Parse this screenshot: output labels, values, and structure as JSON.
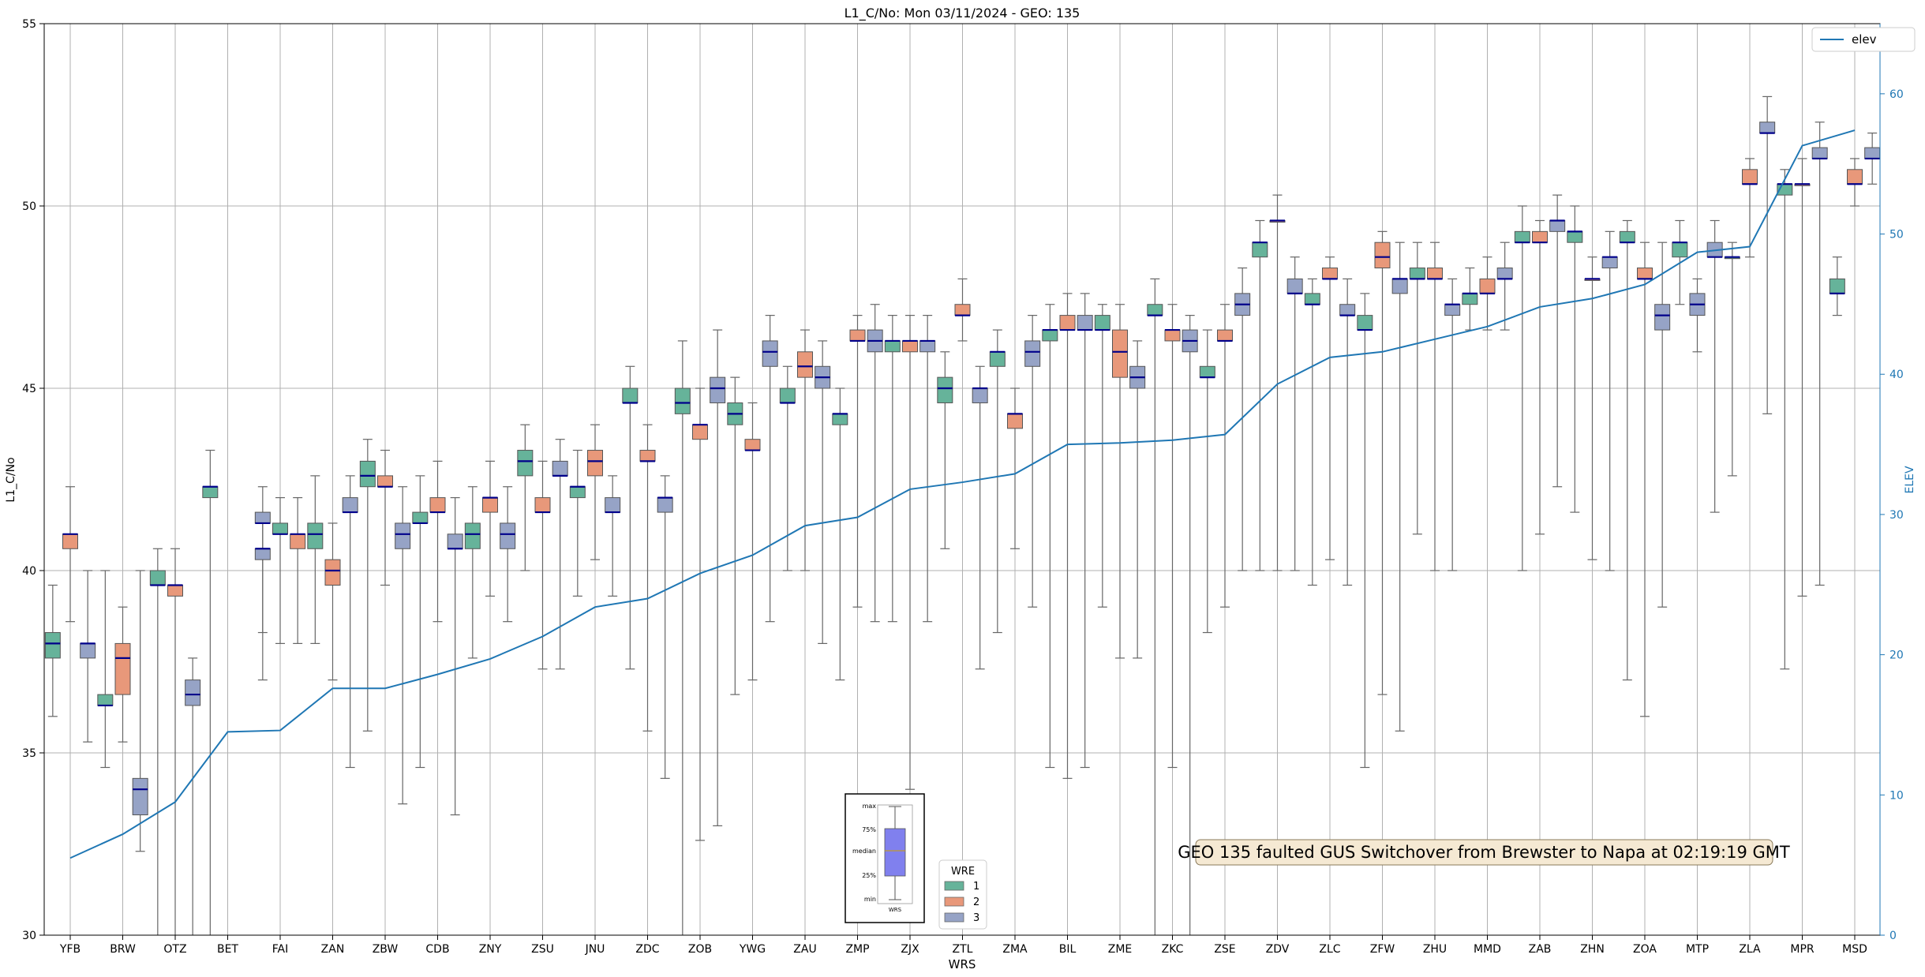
{
  "chart_data": {
    "type": "box",
    "title": "L1_C/No: Mon 03/11/2024 - GEO: 135",
    "xlabel": "WRS",
    "ylabel": "L1_C/No",
    "y2label": "ELEV",
    "ylim": [
      30,
      55
    ],
    "y2lim": [
      0,
      65
    ],
    "yticks": [
      30,
      35,
      40,
      45,
      50,
      55
    ],
    "y2ticks": [
      0,
      10,
      20,
      30,
      40,
      50,
      60
    ],
    "grid": true,
    "categories": [
      "YFB",
      "BRW",
      "OTZ",
      "BET",
      "FAI",
      "ZAN",
      "ZBW",
      "CDB",
      "ZNY",
      "ZSU",
      "JNU",
      "ZDC",
      "ZOB",
      "YWG",
      "ZAU",
      "ZMP",
      "ZJX",
      "ZTL",
      "ZMA",
      "BIL",
      "ZME",
      "ZKC",
      "ZSE",
      "ZDV",
      "ZLC",
      "ZFW",
      "ZHU",
      "MMD",
      "ZAB",
      "ZHN",
      "ZOA",
      "MTP",
      "ZLA",
      "MPR",
      "MSD"
    ],
    "wre_colors": {
      "1": "#66b39a",
      "2": "#e8987a",
      "3": "#96a3c6"
    },
    "median_color": "#00008b",
    "boxes": [
      {
        "site": "YFB",
        "wre": 1,
        "min": 36,
        "q1": 37.6,
        "median": 38,
        "q3": 38.3,
        "max": 39.6
      },
      {
        "site": "YFB",
        "wre": 2,
        "min": 38.6,
        "q1": 40.6,
        "median": 41,
        "q3": 41,
        "max": 42.3
      },
      {
        "site": "YFB",
        "wre": 3,
        "min": 35.3,
        "q1": 37.6,
        "median": 38,
        "q3": 38,
        "max": 40
      },
      {
        "site": "BRW",
        "wre": 1,
        "min": 34.6,
        "q1": 36.3,
        "median": 36.3,
        "q3": 36.6,
        "max": 40
      },
      {
        "site": "BRW",
        "wre": 2,
        "min": 35.3,
        "q1": 36.6,
        "median": 37.6,
        "q3": 38,
        "max": 39
      },
      {
        "site": "BRW",
        "wre": 3,
        "min": 32.3,
        "q1": 33.3,
        "median": 34,
        "q3": 34.3,
        "max": 40
      },
      {
        "site": "OTZ",
        "wre": 1,
        "min": 30,
        "q1": 39.6,
        "median": 39.6,
        "q3": 40,
        "max": 40.6
      },
      {
        "site": "OTZ",
        "wre": 2,
        "min": 30,
        "q1": 39.3,
        "median": 39.6,
        "q3": 39.6,
        "max": 40.6
      },
      {
        "site": "OTZ",
        "wre": 3,
        "min": 30,
        "q1": 36.3,
        "median": 36.6,
        "q3": 37,
        "max": 37.6
      },
      {
        "site": "BET",
        "wre": 1,
        "min": 30,
        "q1": 42,
        "median": 42.3,
        "q3": 42.3,
        "max": 43.3
      },
      {
        "site": "FAI",
        "wre": 3,
        "min": 38.3,
        "q1": 41.3,
        "median": 41.3,
        "q3": 41.6,
        "max": 42.3
      },
      {
        "site": "FAI",
        "wre": 1,
        "min": 38,
        "q1": 41,
        "median": 41,
        "q3": 41.3,
        "max": 42
      },
      {
        "site": "FAI",
        "wre": 2,
        "min": 38,
        "q1": 40.6,
        "median": 41,
        "q3": 41,
        "max": 42
      },
      {
        "site": "FAI",
        "wre": 3,
        "min": 37,
        "q1": 40.3,
        "median": 40.6,
        "q3": 40.6,
        "max": 41.3
      },
      {
        "site": "ZAN",
        "wre": 1,
        "min": 38,
        "q1": 40.6,
        "median": 41,
        "q3": 41.3,
        "max": 42.6
      },
      {
        "site": "ZAN",
        "wre": 2,
        "min": 37,
        "q1": 39.6,
        "median": 40,
        "q3": 40.3,
        "max": 41.3
      },
      {
        "site": "ZAN",
        "wre": 3,
        "min": 34.6,
        "q1": 41.6,
        "median": 41.6,
        "q3": 42,
        "max": 42.6
      },
      {
        "site": "ZBW",
        "wre": 1,
        "min": 35.6,
        "q1": 42.3,
        "median": 42.6,
        "q3": 43,
        "max": 43.6
      },
      {
        "site": "ZBW",
        "wre": 2,
        "min": 39.6,
        "q1": 42.3,
        "median": 42.3,
        "q3": 42.6,
        "max": 43.3
      },
      {
        "site": "ZBW",
        "wre": 3,
        "min": 33.6,
        "q1": 40.6,
        "median": 41,
        "q3": 41.3,
        "max": 42.3
      },
      {
        "site": "CDB",
        "wre": 1,
        "min": 34.6,
        "q1": 41.3,
        "median": 41.3,
        "q3": 41.6,
        "max": 42.6
      },
      {
        "site": "CDB",
        "wre": 2,
        "min": 38.6,
        "q1": 41.6,
        "median": 41.6,
        "q3": 42,
        "max": 43
      },
      {
        "site": "CDB",
        "wre": 3,
        "min": 33.3,
        "q1": 40.6,
        "median": 40.6,
        "q3": 41,
        "max": 42
      },
      {
        "site": "ZNY",
        "wre": 1,
        "min": 37.6,
        "q1": 40.6,
        "median": 41,
        "q3": 41.3,
        "max": 42.3
      },
      {
        "site": "ZNY",
        "wre": 2,
        "min": 39.3,
        "q1": 41.6,
        "median": 42,
        "q3": 42,
        "max": 43
      },
      {
        "site": "ZNY",
        "wre": 3,
        "min": 38.6,
        "q1": 40.6,
        "median": 41,
        "q3": 41.3,
        "max": 42.3
      },
      {
        "site": "ZSU",
        "wre": 1,
        "min": 40,
        "q1": 42.6,
        "median": 43,
        "q3": 43.3,
        "max": 44
      },
      {
        "site": "ZSU",
        "wre": 2,
        "min": 37.3,
        "q1": 41.6,
        "median": 41.6,
        "q3": 42,
        "max": 43
      },
      {
        "site": "ZSU",
        "wre": 3,
        "min": 37.3,
        "q1": 42.6,
        "median": 42.6,
        "q3": 43,
        "max": 43.6
      },
      {
        "site": "JNU",
        "wre": 1,
        "min": 39.3,
        "q1": 42,
        "median": 42.3,
        "q3": 42.3,
        "max": 43.3
      },
      {
        "site": "JNU",
        "wre": 2,
        "min": 40.3,
        "q1": 42.6,
        "median": 43,
        "q3": 43.3,
        "max": 44
      },
      {
        "site": "JNU",
        "wre": 3,
        "min": 39.3,
        "q1": 41.6,
        "median": 41.6,
        "q3": 42,
        "max": 42.6
      },
      {
        "site": "ZDC",
        "wre": 1,
        "min": 37.3,
        "q1": 44.6,
        "median": 44.6,
        "q3": 45,
        "max": 45.6
      },
      {
        "site": "ZDC",
        "wre": 2,
        "min": 35.6,
        "q1": 43,
        "median": 43,
        "q3": 43.3,
        "max": 44
      },
      {
        "site": "ZDC",
        "wre": 3,
        "min": 34.3,
        "q1": 41.6,
        "median": 42,
        "q3": 42,
        "max": 42.6
      },
      {
        "site": "ZOB",
        "wre": 1,
        "min": 30,
        "q1": 44.3,
        "median": 44.6,
        "q3": 45,
        "max": 46.3
      },
      {
        "site": "ZOB",
        "wre": 2,
        "min": 32.6,
        "q1": 43.6,
        "median": 44,
        "q3": 44,
        "max": 45
      },
      {
        "site": "ZOB",
        "wre": 3,
        "min": 33,
        "q1": 44.6,
        "median": 45,
        "q3": 45.3,
        "max": 46.6
      },
      {
        "site": "YWG",
        "wre": 1,
        "min": 36.6,
        "q1": 44,
        "median": 44.3,
        "q3": 44.6,
        "max": 45.3
      },
      {
        "site": "YWG",
        "wre": 2,
        "min": 37,
        "q1": 43.3,
        "median": 43.3,
        "q3": 43.6,
        "max": 44.6
      },
      {
        "site": "YWG",
        "wre": 3,
        "min": 38.6,
        "q1": 45.6,
        "median": 46,
        "q3": 46.3,
        "max": 47
      },
      {
        "site": "ZAU",
        "wre": 1,
        "min": 40,
        "q1": 44.6,
        "median": 44.6,
        "q3": 45,
        "max": 45.6
      },
      {
        "site": "ZAU",
        "wre": 2,
        "min": 40,
        "q1": 45.3,
        "median": 45.6,
        "q3": 46,
        "max": 46.6
      },
      {
        "site": "ZAU",
        "wre": 3,
        "min": 38,
        "q1": 45,
        "median": 45.3,
        "q3": 45.6,
        "max": 46.3
      },
      {
        "site": "ZMP",
        "wre": 1,
        "min": 37,
        "q1": 44,
        "median": 44.3,
        "q3": 44.3,
        "max": 45
      },
      {
        "site": "ZMP",
        "wre": 2,
        "min": 39,
        "q1": 46.3,
        "median": 46.3,
        "q3": 46.6,
        "max": 47
      },
      {
        "site": "ZMP",
        "wre": 3,
        "min": 38.6,
        "q1": 46,
        "median": 46.3,
        "q3": 46.6,
        "max": 47.3
      },
      {
        "site": "ZJX",
        "wre": 1,
        "min": 38.6,
        "q1": 46,
        "median": 46.3,
        "q3": 46.3,
        "max": 47
      },
      {
        "site": "ZJX",
        "wre": 2,
        "min": 34,
        "q1": 46,
        "median": 46.3,
        "q3": 46.3,
        "max": 47
      },
      {
        "site": "ZJX",
        "wre": 3,
        "min": 38.6,
        "q1": 46,
        "median": 46.3,
        "q3": 46.3,
        "max": 47
      },
      {
        "site": "ZTL",
        "wre": 1,
        "min": 40.6,
        "q1": 44.6,
        "median": 45,
        "q3": 45.3,
        "max": 46
      },
      {
        "site": "ZTL",
        "wre": 2,
        "min": 46.3,
        "q1": 47,
        "median": 47,
        "q3": 47.3,
        "max": 48
      },
      {
        "site": "ZTL",
        "wre": 3,
        "min": 37.3,
        "q1": 44.6,
        "median": 45,
        "q3": 45,
        "max": 45.6
      },
      {
        "site": "ZMA",
        "wre": 1,
        "min": 38.3,
        "q1": 45.6,
        "median": 46,
        "q3": 46,
        "max": 46.6
      },
      {
        "site": "ZMA",
        "wre": 2,
        "min": 40.6,
        "q1": 43.9,
        "median": 44.3,
        "q3": 44.3,
        "max": 45
      },
      {
        "site": "ZMA",
        "wre": 3,
        "min": 39,
        "q1": 45.6,
        "median": 46,
        "q3": 46.3,
        "max": 47
      },
      {
        "site": "BIL",
        "wre": 1,
        "min": 34.6,
        "q1": 46.3,
        "median": 46.6,
        "q3": 46.6,
        "max": 47.3
      },
      {
        "site": "BIL",
        "wre": 2,
        "min": 34.3,
        "q1": 46.6,
        "median": 46.6,
        "q3": 47,
        "max": 47.6
      },
      {
        "site": "BIL",
        "wre": 3,
        "min": 34.6,
        "q1": 46.6,
        "median": 46.6,
        "q3": 47,
        "max": 47.6
      },
      {
        "site": "ZME",
        "wre": 1,
        "min": 39,
        "q1": 46.6,
        "median": 46.6,
        "q3": 47,
        "max": 47.3
      },
      {
        "site": "ZME",
        "wre": 2,
        "min": 37.6,
        "q1": 45.3,
        "median": 46,
        "q3": 46.6,
        "max": 47.3
      },
      {
        "site": "ZME",
        "wre": 3,
        "min": 37.6,
        "q1": 45,
        "median": 45.3,
        "q3": 45.6,
        "max": 46.3
      },
      {
        "site": "ZKC",
        "wre": 1,
        "min": 30,
        "q1": 47,
        "median": 47,
        "q3": 47.3,
        "max": 48
      },
      {
        "site": "ZKC",
        "wre": 2,
        "min": 34.6,
        "q1": 46.3,
        "median": 46.6,
        "q3": 46.6,
        "max": 47.3
      },
      {
        "site": "ZKC",
        "wre": 3,
        "min": 30,
        "q1": 46,
        "median": 46.3,
        "q3": 46.6,
        "max": 47
      },
      {
        "site": "ZSE",
        "wre": 1,
        "min": 38.3,
        "q1": 45.3,
        "median": 45.3,
        "q3": 45.6,
        "max": 46.6
      },
      {
        "site": "ZSE",
        "wre": 2,
        "min": 39,
        "q1": 46.3,
        "median": 46.3,
        "q3": 46.6,
        "max": 47.3
      },
      {
        "site": "ZSE",
        "wre": 3,
        "min": 40,
        "q1": 47,
        "median": 47.3,
        "q3": 47.6,
        "max": 48.3
      },
      {
        "site": "ZDV",
        "wre": 1,
        "min": 40,
        "q1": 48.6,
        "median": 49,
        "q3": 49,
        "max": 49.6
      },
      {
        "site": "ZDV",
        "wre": 2,
        "min": 40,
        "q1": 49.6,
        "median": 49.6,
        "q3": 49.6,
        "max": 50.3
      },
      {
        "site": "ZDV",
        "wre": 3,
        "min": 40,
        "q1": 47.6,
        "median": 47.6,
        "q3": 48,
        "max": 48.6
      },
      {
        "site": "ZLC",
        "wre": 1,
        "min": 39.6,
        "q1": 47.3,
        "median": 47.3,
        "q3": 47.6,
        "max": 48
      },
      {
        "site": "ZLC",
        "wre": 2,
        "min": 40.3,
        "q1": 48,
        "median": 48,
        "q3": 48.3,
        "max": 48.6
      },
      {
        "site": "ZLC",
        "wre": 3,
        "min": 39.6,
        "q1": 47,
        "median": 47,
        "q3": 47.3,
        "max": 48
      },
      {
        "site": "ZFW",
        "wre": 1,
        "min": 34.6,
        "q1": 46.6,
        "median": 46.6,
        "q3": 47,
        "max": 47.6
      },
      {
        "site": "ZFW",
        "wre": 2,
        "min": 36.6,
        "q1": 48.3,
        "median": 48.6,
        "q3": 49,
        "max": 49.3
      },
      {
        "site": "ZFW",
        "wre": 3,
        "min": 35.6,
        "q1": 47.6,
        "median": 48,
        "q3": 48,
        "max": 49
      },
      {
        "site": "ZHU",
        "wre": 1,
        "min": 41,
        "q1": 48,
        "median": 48,
        "q3": 48.3,
        "max": 49
      },
      {
        "site": "ZHU",
        "wre": 2,
        "min": 40,
        "q1": 48,
        "median": 48,
        "q3": 48.3,
        "max": 49
      },
      {
        "site": "ZHU",
        "wre": 3,
        "min": 40,
        "q1": 47,
        "median": 47.3,
        "q3": 47.3,
        "max": 48
      },
      {
        "site": "MMD",
        "wre": 1,
        "min": 46.6,
        "q1": 47.3,
        "median": 47.6,
        "q3": 47.6,
        "max": 48.3
      },
      {
        "site": "MMD",
        "wre": 2,
        "min": 46.6,
        "q1": 47.6,
        "median": 47.6,
        "q3": 48,
        "max": 48.6
      },
      {
        "site": "MMD",
        "wre": 3,
        "min": 46.6,
        "q1": 48,
        "median": 48,
        "q3": 48.3,
        "max": 49
      },
      {
        "site": "ZAB",
        "wre": 1,
        "min": 40,
        "q1": 49,
        "median": 49,
        "q3": 49.3,
        "max": 50
      },
      {
        "site": "ZAB",
        "wre": 2,
        "min": 41,
        "q1": 49,
        "median": 49,
        "q3": 49.3,
        "max": 49.6
      },
      {
        "site": "ZAB",
        "wre": 3,
        "min": 42.3,
        "q1": 49.3,
        "median": 49.6,
        "q3": 49.6,
        "max": 50.3
      },
      {
        "site": "ZHN",
        "wre": 1,
        "min": 41.6,
        "q1": 49,
        "median": 49.3,
        "q3": 49.3,
        "max": 50
      },
      {
        "site": "ZHN",
        "wre": 2,
        "min": 40.3,
        "q1": 48,
        "median": 48,
        "q3": 48,
        "max": 48.6
      },
      {
        "site": "ZHN",
        "wre": 3,
        "min": 40,
        "q1": 48.3,
        "median": 48.6,
        "q3": 48.6,
        "max": 49.3
      },
      {
        "site": "ZOA",
        "wre": 1,
        "min": 37,
        "q1": 49,
        "median": 49,
        "q3": 49.3,
        "max": 49.6
      },
      {
        "site": "ZOA",
        "wre": 2,
        "min": 36,
        "q1": 48,
        "median": 48,
        "q3": 48.3,
        "max": 49
      },
      {
        "site": "ZOA",
        "wre": 3,
        "min": 39,
        "q1": 46.6,
        "median": 47,
        "q3": 47.3,
        "max": 49
      },
      {
        "site": "MTP",
        "wre": 1,
        "min": 47.3,
        "q1": 48.6,
        "median": 49,
        "q3": 49,
        "max": 49.6
      },
      {
        "site": "MTP",
        "wre": 3,
        "min": 46,
        "q1": 47,
        "median": 47.3,
        "q3": 47.6,
        "max": 48
      },
      {
        "site": "MTP",
        "wre": 3,
        "min": 41.6,
        "q1": 48.6,
        "median": 48.6,
        "q3": 49,
        "max": 49.6
      },
      {
        "site": "ZLA",
        "wre": 1,
        "min": 42.6,
        "q1": 48.6,
        "median": 48.6,
        "q3": 48.6,
        "max": 49
      },
      {
        "site": "ZLA",
        "wre": 2,
        "min": 48.6,
        "q1": 50.6,
        "median": 50.6,
        "q3": 51,
        "max": 51.3
      },
      {
        "site": "ZLA",
        "wre": 3,
        "min": 44.3,
        "q1": 52,
        "median": 52,
        "q3": 52.3,
        "max": 53
      },
      {
        "site": "MPR",
        "wre": 1,
        "min": 37.3,
        "q1": 50.3,
        "median": 50.6,
        "q3": 50.6,
        "max": 51
      },
      {
        "site": "MPR",
        "wre": 2,
        "min": 39.3,
        "q1": 50.6,
        "median": 50.6,
        "q3": 50.6,
        "max": 51.3
      },
      {
        "site": "MPR",
        "wre": 3,
        "min": 39.6,
        "q1": 51.3,
        "median": 51.3,
        "q3": 51.6,
        "max": 52.3
      },
      {
        "site": "MSD",
        "wre": 1,
        "min": 47,
        "q1": 47.6,
        "median": 47.6,
        "q3": 48,
        "max": 48.6
      },
      {
        "site": "MSD",
        "wre": 2,
        "min": 50,
        "q1": 50.6,
        "median": 50.6,
        "q3": 51,
        "max": 51.3
      },
      {
        "site": "MSD",
        "wre": 3,
        "min": 50.6,
        "q1": 51.3,
        "median": 51.3,
        "q3": 51.6,
        "max": 52
      }
    ],
    "elev_series": {
      "name": "elev",
      "color": "#1f77b4",
      "values": [
        5.5,
        7.2,
        9.5,
        14.5,
        14.6,
        17.6,
        17.6,
        18.6,
        19.7,
        21.3,
        23.4,
        24,
        25.8,
        27.1,
        29.2,
        29.8,
        31.8,
        32.3,
        32.9,
        35,
        35.1,
        35.3,
        35.7,
        39.3,
        41.2,
        41.6,
        42.5,
        43.4,
        44.8,
        45.4,
        46.4,
        48.7,
        49.1,
        56.3,
        57.4
      ]
    },
    "legend_elev": {
      "position": "top-right",
      "label": "elev"
    },
    "legend_wre": {
      "title": "WRE",
      "items": [
        "1",
        "2",
        "3"
      ],
      "position": "bottom-center"
    },
    "inset_legend": {
      "labels": [
        "max",
        "75%",
        "median",
        "25%",
        "min"
      ],
      "xlabel": "WRS"
    },
    "annotation": "GEO 135 faulted GUS Switchover from Brewster to Napa at 02:19:19 GMT"
  }
}
